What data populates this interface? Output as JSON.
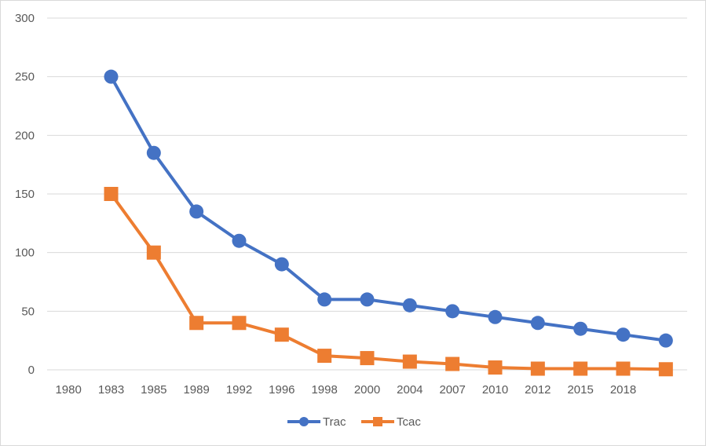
{
  "chart_data": {
    "type": "line",
    "title": "",
    "xlabel": "",
    "ylabel": "",
    "categories": [
      "1980",
      "1983",
      "1985",
      "1989",
      "1992",
      "1996",
      "1998",
      "2000",
      "2004",
      "2007",
      "2010",
      "2012",
      "2015",
      "2018",
      ""
    ],
    "ylim": [
      0,
      300
    ],
    "yticks": [
      0,
      50,
      100,
      150,
      200,
      250,
      300
    ],
    "grid": true,
    "legend_position": "bottom",
    "series": [
      {
        "name": "Trac",
        "color": "#4472c4",
        "marker": "circle",
        "values": [
          null,
          250,
          185,
          135,
          110,
          90,
          60,
          60,
          55,
          50,
          45,
          40,
          35,
          30,
          25
        ]
      },
      {
        "name": "Tcac",
        "color": "#ed7d31",
        "marker": "square",
        "values": [
          null,
          150,
          100,
          40,
          40,
          30,
          12,
          10,
          7,
          5,
          2,
          1,
          1,
          1,
          0.5
        ]
      }
    ]
  }
}
